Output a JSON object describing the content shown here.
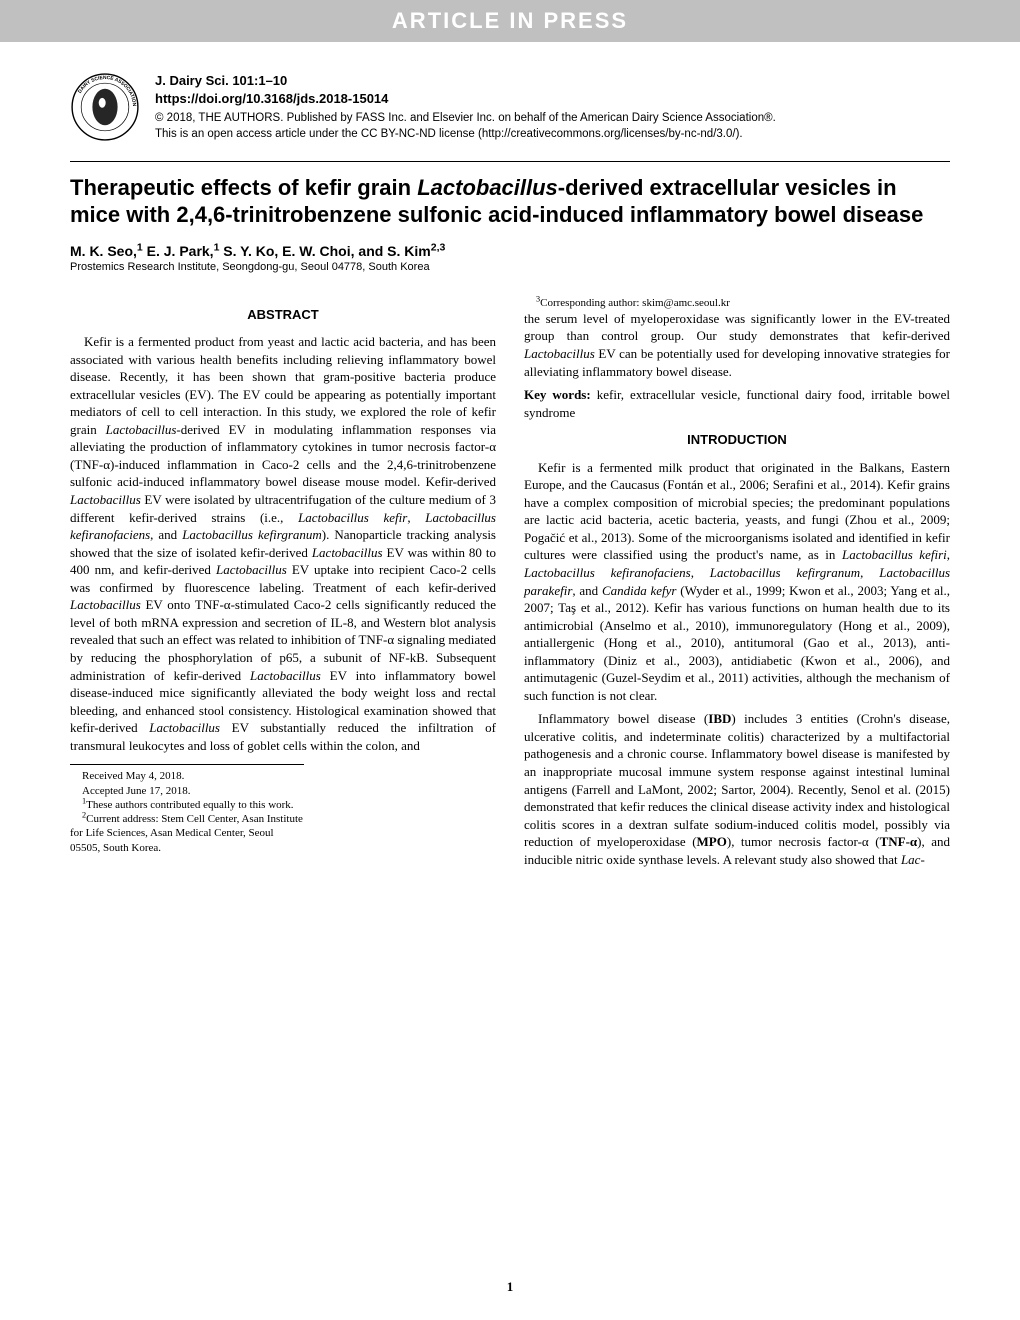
{
  "banner": "ARTICLE IN PRESS",
  "journal": {
    "citation": "J. Dairy Sci. 101:1–10",
    "doi": "https://doi.org/10.3168/jds.2018-15014",
    "copyright": "© 2018, THE AUTHORS. Published by FASS Inc. and Elsevier Inc. on behalf of the American Dairy Science Association®.",
    "license": "This is an open access article under the CC BY-NC-ND license (http://creativecommons.org/licenses/by-nc-nd/3.0/)."
  },
  "title_parts": {
    "pre": "Therapeutic effects of kefir grain ",
    "italic": "Lactobacillus",
    "post": "-derived extracellular vesicles in mice with 2,4,6-trinitrobenzene sulfonic acid-induced inflammatory bowel disease"
  },
  "authors_html": "M. K. Seo,<sup>1</sup> E. J. Park,<sup>1</sup> S. Y. Ko, E. W. Choi, and S. Kim<sup>2,3</sup>",
  "affiliation": "Prostemics Research Institute, Seongdong-gu, Seoul 04778, South Korea",
  "abstract_heading": "ABSTRACT",
  "abstract_html": "Kefir is a fermented product from yeast and lactic acid bacteria, and has been associated with various health benefits including relieving inflammatory bowel disease. Recently, it has been shown that gram-positive bacteria produce extracellular vesicles (EV). The EV could be appearing as potentially important mediators of cell to cell interaction. In this study, we explored the role of kefir grain <em>Lactobacillus</em>-derived EV in modulating inflammation responses via alleviating the production of inflammatory cytokines in tumor necrosis factor-α (TNF-α)-induced inflammation in Caco-2 cells and the 2,4,6-trinitrobenzene sulfonic acid-induced inflammatory bowel disease mouse model. Kefir-derived <em>Lactobacillus</em> EV were isolated by ultracentrifugation of the culture medium of 3 different kefir-derived strains (i.e., <em>Lactobacillus kefir</em>, <em>Lactobacillus kefiranofaciens</em>, and <em>Lactobacillus kefirgranum</em>). Nanoparticle tracking analysis showed that the size of isolated kefir-derived <em>Lactobacillus</em> EV was within 80 to 400 nm, and kefir-derived <em>Lactobacillus</em> EV uptake into recipient Caco-2 cells was confirmed by fluorescence labeling. Treatment of each kefir-derived <em>Lactobacillus</em> EV onto TNF-α-stimulated Caco-2 cells significantly reduced the level of both mRNA expression and secretion of IL-8, and Western blot analysis revealed that such an effect was related to inhibition of TNF-α signaling mediated by reducing the phosphorylation of p65, a subunit of NF-kB. Subsequent administration of kefir-derived <em>Lactobacillus</em> EV into inflammatory bowel disease-induced mice significantly alleviated the body weight loss and rectal bleeding, and enhanced stool consistency. Histological examination showed that kefir-derived <em>Lactobacillus</em> EV substantially reduced the infiltration of transmural leukocytes and loss of goblet cells within the colon, and",
  "abstract_cont_html": "the serum level of myeloperoxidase was significantly lower in the EV-treated group than control group. Our study demonstrates that kefir-derived <em>Lactobacillus</em> EV can be potentially used for developing innovative strategies for alleviating inflammatory bowel disease.",
  "keywords_label": "Key words:",
  "keywords": " kefir, extracellular vesicle, functional dairy food, irritable bowel syndrome",
  "intro_heading": "INTRODUCTION",
  "intro_p1_html": "Kefir is a fermented milk product that originated in the Balkans, Eastern Europe, and the Caucasus (Fontán et al., 2006; Serafini et al., 2014). Kefir grains have a complex composition of microbial species; the predominant populations are lactic acid bacteria, acetic bacteria, yeasts, and fungi (Zhou et al., 2009; Pogačić et al., 2013). Some of the microorganisms isolated and identified in kefir cultures were classified using the product's name, as in <em>Lactobacillus kefiri</em>, <em>Lactobacillus kefiranofaciens</em>, <em>Lactobacillus kefirgranum</em>, <em>Lactobacillus parakefir</em>, and <em>Candida kefyr</em> (Wyder et al., 1999; Kwon et al., 2003; Yang et al., 2007; Taş et al., 2012). Kefir has various functions on human health due to its antimicrobial (Anselmo et al., 2010), immunoregulatory (Hong et al., 2009), antiallergenic (Hong et al., 2010), antitumoral (Gao et al., 2013), anti-inflammatory (Diniz et al., 2003), antidiabetic (Kwon et al., 2006), and antimutagenic (Guzel-Seydim et al., 2011) activities, although the mechanism of such function is not clear.",
  "intro_p2_html": "Inflammatory bowel disease (<b>IBD</b>) includes 3 entities (Crohn's disease, ulcerative colitis, and indeterminate colitis) characterized by a multifactorial pathogenesis and a chronic course. Inflammatory bowel disease is manifested by an inappropriate mucosal immune system response against intestinal luminal antigens (Farrell and LaMont, 2002; Sartor, 2004). Recently, Senol et al. (2015) demonstrated that kefir reduces the clinical disease activity index and histological colitis scores in a dextran sulfate sodium-induced colitis model, possibly via reduction of myeloperoxidase (<b>MPO</b>), tumor necrosis factor-α (<b>TNF-α</b>), and inducible nitric oxide synthase levels. A relevant study also showed that <em>Lac-</em>",
  "footnotes": {
    "received": "Received May 4, 2018.",
    "accepted": "Accepted June 17, 2018.",
    "fn1": "These authors contributed equally to this work.",
    "fn2": "Current address: Stem Cell Center, Asan Institute for Life Sciences, Asan Medical Center, Seoul 05505, South Korea.",
    "fn3": "Corresponding author: skim@amc.seoul.kr"
  },
  "page_number": "1",
  "colors": {
    "banner_bg": "#c0c0c0",
    "banner_text": "#ffffff",
    "text": "#000000",
    "background": "#ffffff"
  },
  "typography": {
    "body_fontsize": 13,
    "title_fontsize": 22,
    "heading_fontsize": 13,
    "footnote_fontsize": 11
  }
}
